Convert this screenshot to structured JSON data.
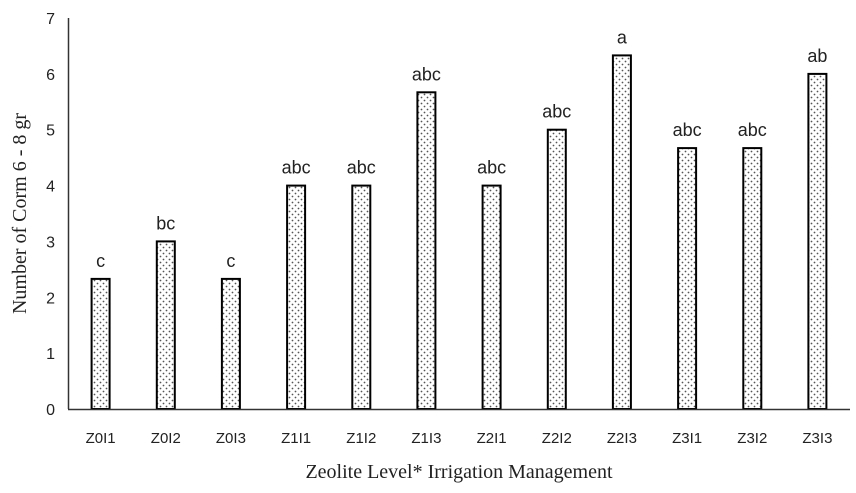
{
  "chart_data": {
    "type": "bar",
    "xlabel": "Zeolite Level* Irrigation Management",
    "ylabel": "Number of Corm 6 - 8 gr",
    "ylim": [
      0,
      7
    ],
    "yticks": [
      0,
      1,
      2,
      3,
      4,
      5,
      6,
      7
    ],
    "grid": false,
    "legend": "none",
    "bar_pattern": "dotted",
    "colors": {
      "bar_fill": "#ffffff",
      "bar_stroke": "#000000",
      "pattern_dots": "#555555",
      "axis": "#333333"
    },
    "categories": [
      "Z0I1",
      "Z0I2",
      "Z0I3",
      "Z1I1",
      "Z1I2",
      "Z1I3",
      "Z2I1",
      "Z2I2",
      "Z2I3",
      "Z3I1",
      "Z3I2",
      "Z3I3"
    ],
    "values": [
      2.33,
      3.0,
      2.33,
      4.0,
      4.0,
      5.67,
      4.0,
      5.0,
      6.33,
      4.67,
      4.67,
      6.0
    ],
    "labels": [
      "c",
      "bc",
      "c",
      "abc",
      "abc",
      "abc",
      "abc",
      "abc",
      "a",
      "abc",
      "abc",
      "ab"
    ]
  }
}
